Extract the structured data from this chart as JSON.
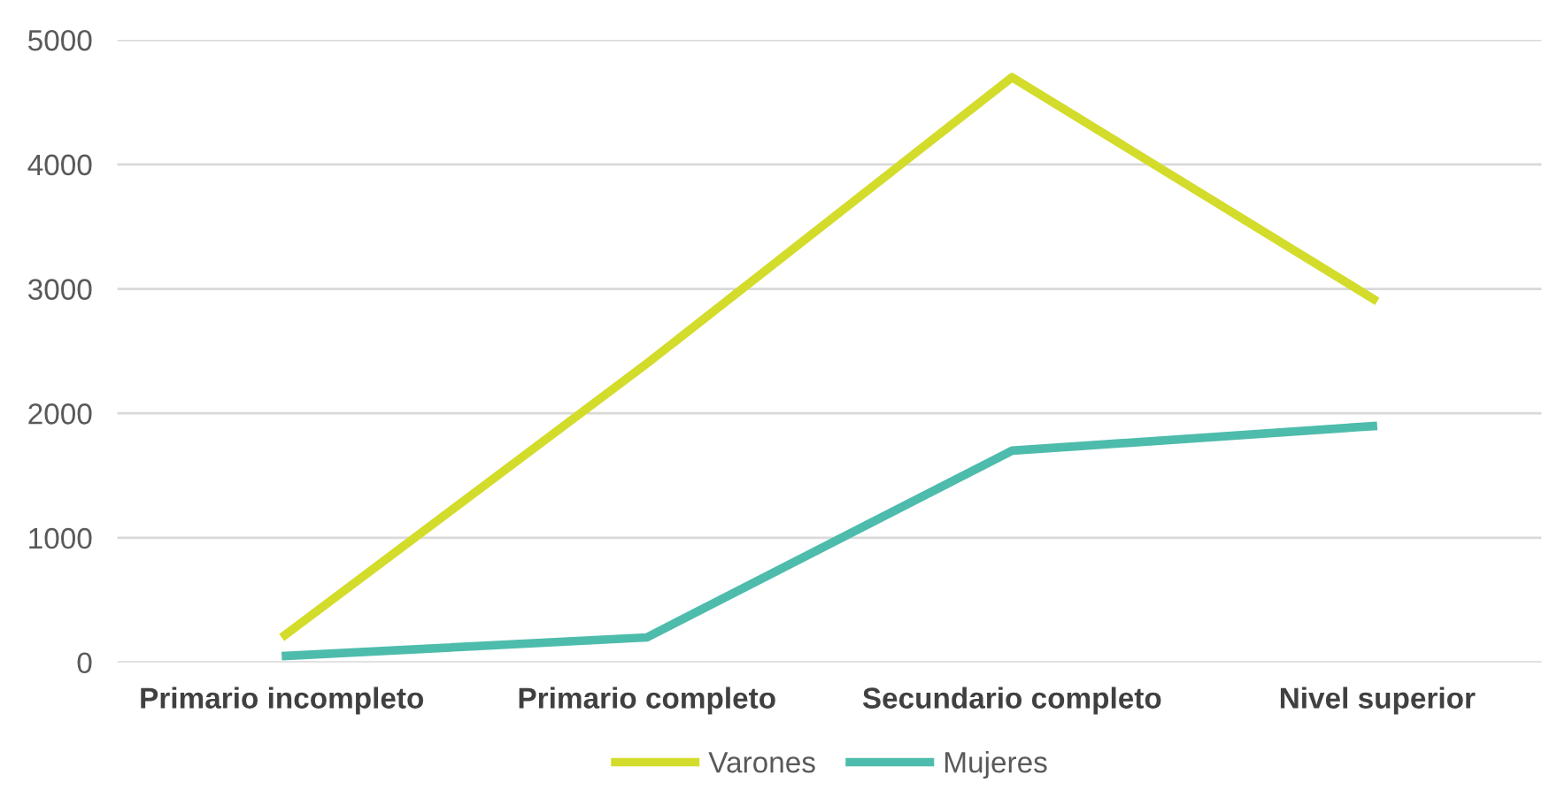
{
  "chart_data": {
    "type": "line",
    "categories": [
      "Primario incompleto",
      "Primario completo",
      "Secundario completo",
      "Nivel superior"
    ],
    "series": [
      {
        "name": "Varones",
        "color": "#d3dc2b",
        "values": [
          200,
          2400,
          4700,
          2900
        ]
      },
      {
        "name": "Mujeres",
        "color": "#4dbcac",
        "values": [
          50,
          200,
          1700,
          1900
        ]
      }
    ],
    "ylim": [
      0,
      5000
    ],
    "yticks": [
      0,
      1000,
      2000,
      3000,
      4000,
      5000
    ],
    "grid": "y",
    "legend": "bottom",
    "marker": "none",
    "line_style": "solid"
  }
}
